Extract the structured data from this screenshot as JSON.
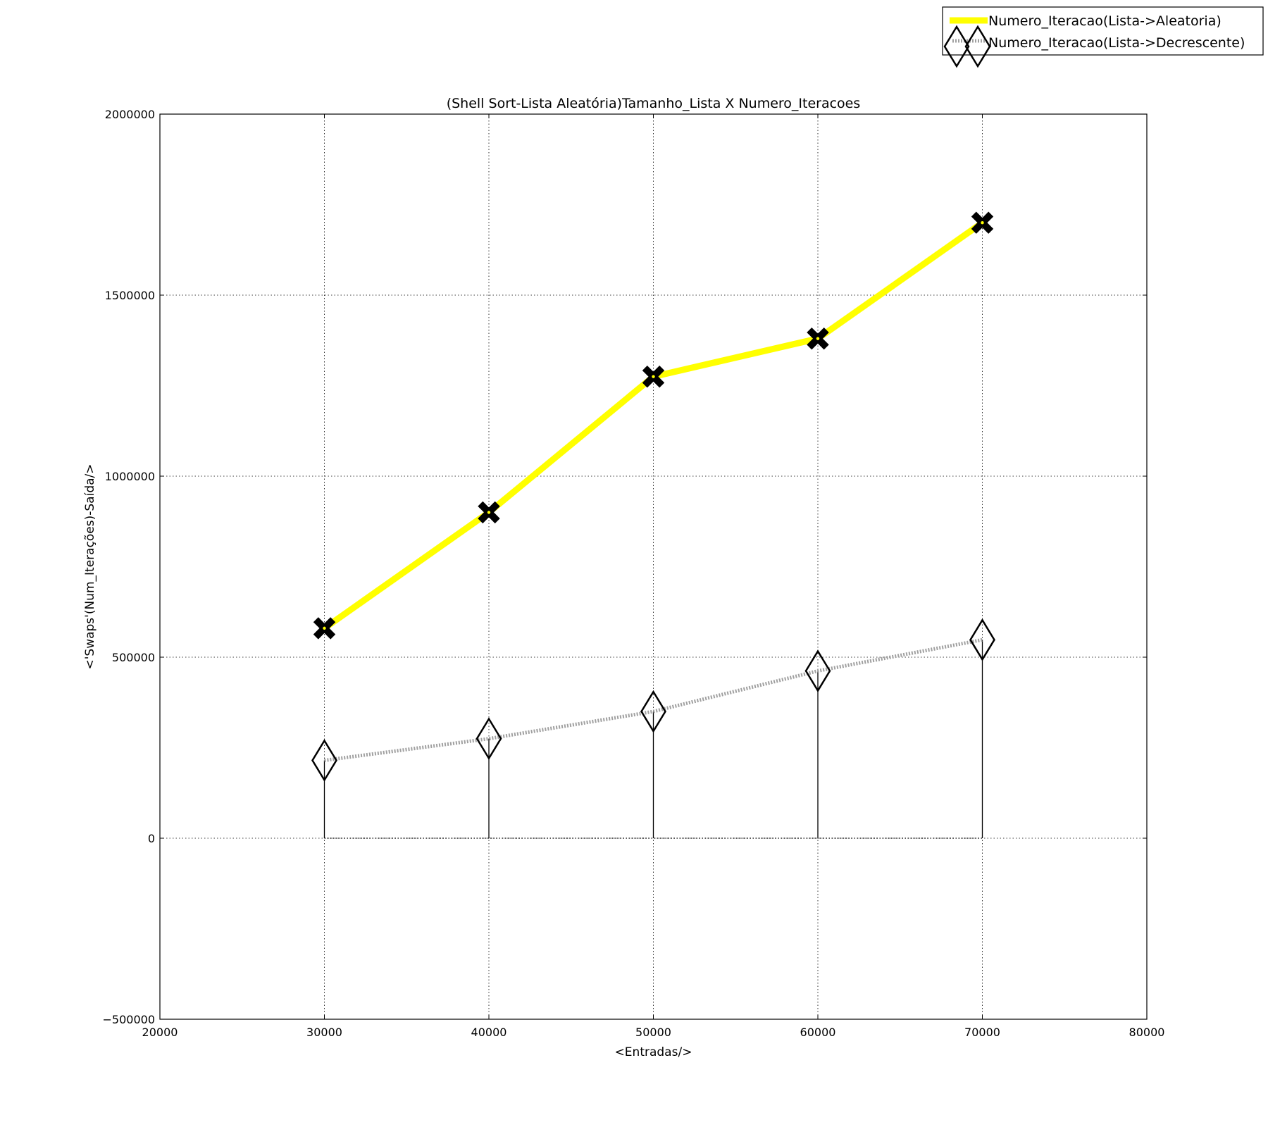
{
  "chart_data": {
    "type": "line",
    "title": "(Shell Sort-Lista Aleatória)Tamanho_Lista X Numero_Iteracoes",
    "xlabel": "<Entradas/>",
    "ylabel": "<'Swaps'(Num_Iterações)-Saída/>",
    "xlim": [
      20000,
      80000
    ],
    "ylim": [
      -500000,
      2000000
    ],
    "xticks": [
      20000,
      30000,
      40000,
      50000,
      60000,
      70000,
      80000
    ],
    "yticks": [
      -500000,
      0,
      500000,
      1000000,
      1500000,
      2000000
    ],
    "xtick_labels": [
      "20000",
      "30000",
      "40000",
      "50000",
      "60000",
      "70000",
      "80000"
    ],
    "ytick_labels": [
      "−500000",
      "0",
      "500000",
      "1000000",
      "1500000",
      "2000000"
    ],
    "grid": true,
    "legend_position": "top-right, outside plot",
    "x": [
      30000,
      40000,
      50000,
      60000,
      70000
    ],
    "series": [
      {
        "name": "Numero_Iteracao(Lista->Aleatoria)",
        "values": [
          580000,
          900000,
          1275000,
          1380000,
          1700000
        ],
        "color": "#ffff00",
        "marker": "X",
        "marker_color": "#000000",
        "line_style": "solid"
      },
      {
        "name": "Numero_Iteracao(Lista->Decrescente)",
        "values": [
          215000,
          275000,
          350000,
          462000,
          548000
        ],
        "color": "#a0a0a0",
        "marker": "diamond",
        "marker_color": "#000000",
        "line_style": "dotted",
        "stems_to_zero": true
      }
    ]
  }
}
